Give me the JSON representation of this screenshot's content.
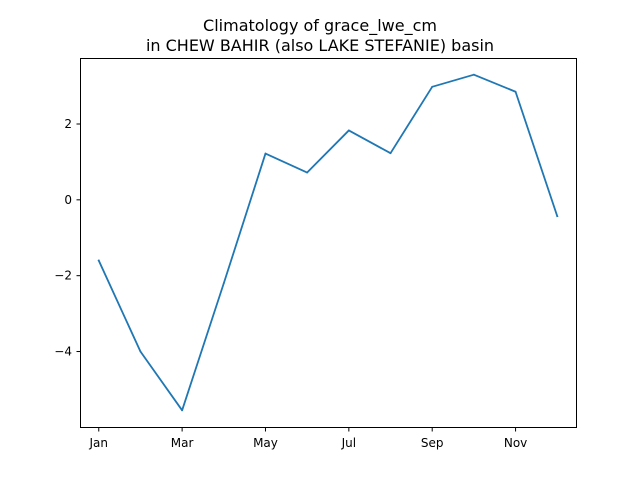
{
  "chart_data": {
    "type": "line",
    "title_lines": [
      "Climatology of grace_lwe_cm",
      "in CHEW BAHIR (also LAKE STEFANIE) basin"
    ],
    "xlabel": "",
    "ylabel": "",
    "x": [
      1,
      2,
      3,
      4,
      5,
      6,
      7,
      8,
      9,
      10,
      11,
      12
    ],
    "series": [
      {
        "values": [
          -1.6,
          -4.0,
          -5.55,
          -2.2,
          1.22,
          0.72,
          1.83,
          1.23,
          2.98,
          3.3,
          2.85,
          -0.43
        ],
        "color": "#1f77b4"
      }
    ],
    "xticks": [
      {
        "value": 1,
        "label": "Jan"
      },
      {
        "value": 3,
        "label": "Mar"
      },
      {
        "value": 5,
        "label": "May"
      },
      {
        "value": 7,
        "label": "Jul"
      },
      {
        "value": 9,
        "label": "Sep"
      },
      {
        "value": 11,
        "label": "Nov"
      }
    ],
    "yticks": [
      {
        "value": -4,
        "label": "−4"
      },
      {
        "value": -2,
        "label": "−2"
      },
      {
        "value": 0,
        "label": "0"
      },
      {
        "value": 2,
        "label": "2"
      }
    ],
    "xlim": [
      0.55,
      12.45
    ],
    "ylim": [
      -5.99,
      3.74
    ],
    "grid": false,
    "legend": "none"
  }
}
